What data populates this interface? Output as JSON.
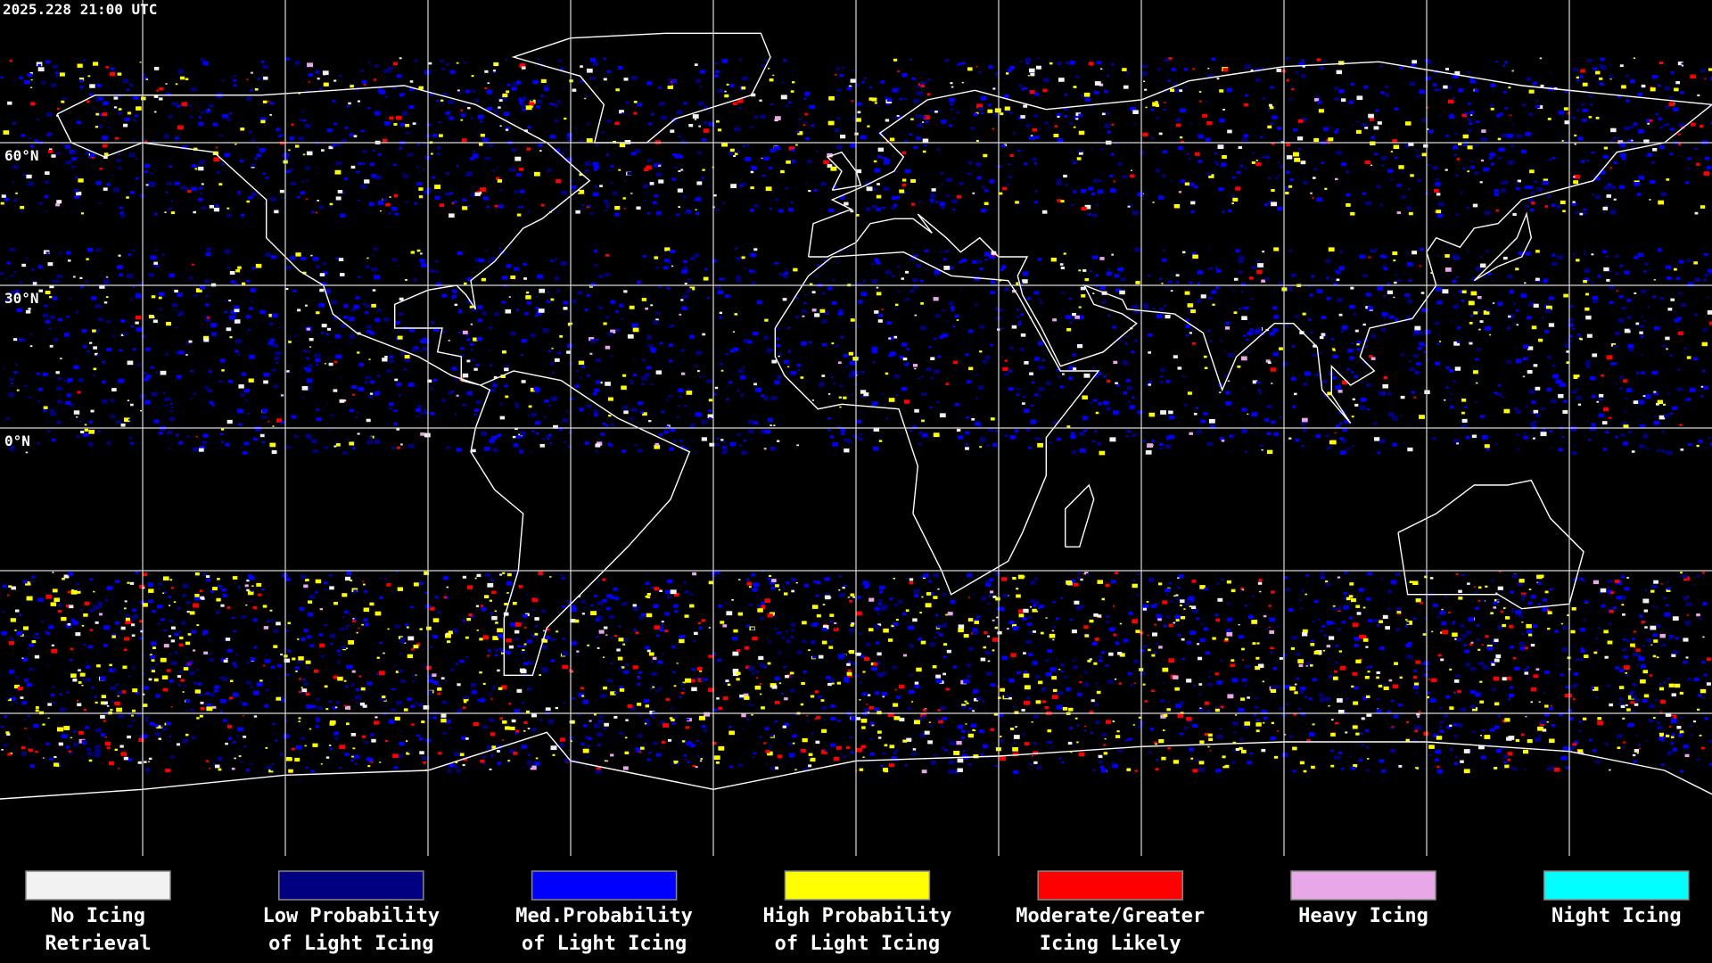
{
  "timestamp": "2025.228 21:00 UTC",
  "latitude_labels": [
    "60°N",
    "30°N",
    "0°N"
  ],
  "legend": [
    {
      "label": [
        "No Icing",
        "Retrieval"
      ],
      "color": "#f2f2f2"
    },
    {
      "label": [
        "Low Probability",
        "of Light Icing"
      ],
      "color": "#000080"
    },
    {
      "label": [
        "Med.Probability",
        "of Light Icing"
      ],
      "color": "#0000ff"
    },
    {
      "label": [
        "High Probability",
        "of Light Icing"
      ],
      "color": "#ffff00"
    },
    {
      "label": [
        "Moderate/Greater",
        "Icing Likely"
      ],
      "color": "#ff0000"
    },
    {
      "label": [
        "Heavy Icing"
      ],
      "color": "#e8a8e8"
    },
    {
      "label": [
        "Night Icing"
      ],
      "color": "#00ffff"
    }
  ]
}
